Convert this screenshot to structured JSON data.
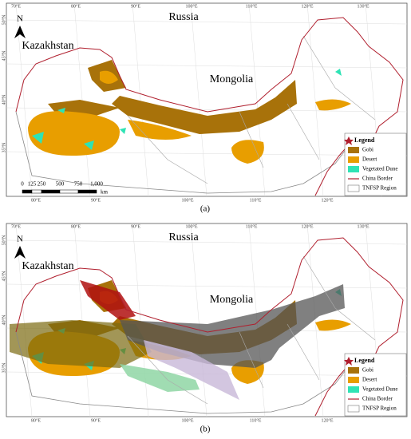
{
  "map": {
    "countries": [
      "Russia",
      "Mongolia",
      "Kazakhstan"
    ],
    "north": "N",
    "top_labels": [
      "70°E",
      "80°E",
      "90°E",
      "100°E",
      "110°E",
      "120°E",
      "130°E"
    ],
    "bottom_labels": [
      "80°E",
      "90°E",
      "100°E",
      "110°E",
      "120°E"
    ],
    "left_labels": [
      "50°N",
      "45°N",
      "40°N",
      "35°N"
    ],
    "legend": {
      "title": "Legend",
      "items": [
        "Gobi",
        "Desert",
        "Vegetated Dune",
        "China Border",
        "TNFSP Region"
      ]
    }
  },
  "panels": [
    {
      "label": "(a)",
      "scale_bar": {
        "ticks": [
          "0",
          "125",
          "250",
          "500",
          "750",
          "1,000"
        ],
        "unit": "km"
      }
    },
    {
      "label": "(b)"
    }
  ]
}
